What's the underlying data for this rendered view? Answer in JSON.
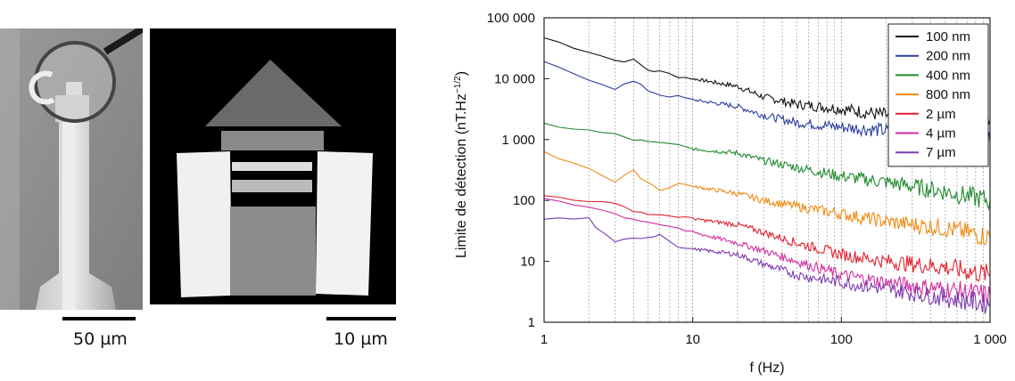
{
  "figure": {
    "left_image": {
      "scale_label": "50 µm"
    },
    "right_image": {
      "scale_label": "10 µm"
    }
  },
  "chart_data": {
    "type": "line",
    "title": "",
    "xlabel": "f (Hz)",
    "ylabel": "Limite de détection (nT.Hz",
    "ylabel_sup": "−1/2",
    "ylabel_close": ")",
    "x_scale": "log",
    "y_scale": "log",
    "xlim": [
      1,
      1000
    ],
    "ylim": [
      1,
      100000
    ],
    "x_ticks": [
      {
        "v": 1,
        "label": "1"
      },
      {
        "v": 10,
        "label": "10"
      },
      {
        "v": 100,
        "label": "100"
      },
      {
        "v": 1000,
        "label": "1 000"
      }
    ],
    "y_ticks": [
      {
        "v": 1,
        "label": "1"
      },
      {
        "v": 10,
        "label": "10"
      },
      {
        "v": 100,
        "label": "100"
      },
      {
        "v": 1000,
        "label": "1 000"
      },
      {
        "v": 10000,
        "label": "10 000"
      },
      {
        "v": 100000,
        "label": "100 000"
      }
    ],
    "grid": "vertical minor/major lines on x",
    "legend_position": "top-right",
    "series": [
      {
        "name": "100 nm",
        "color": "#111111",
        "x": [
          1,
          2,
          3,
          4,
          5,
          6,
          8,
          10,
          20,
          30,
          50,
          100,
          200,
          500,
          1000
        ],
        "y": [
          47000,
          28000,
          20000,
          20000,
          14000,
          13000,
          11000,
          10000,
          7500,
          5000,
          3800,
          3200,
          2500,
          2200,
          2000
        ]
      },
      {
        "name": "200 nm",
        "color": "#2b3c9e",
        "x": [
          1,
          2,
          3,
          4,
          5,
          6,
          8,
          10,
          20,
          30,
          50,
          100,
          200,
          500,
          1000
        ],
        "y": [
          18000,
          10000,
          7000,
          9000,
          6500,
          5500,
          5000,
          4500,
          3500,
          2500,
          1900,
          1600,
          1400,
          1100,
          900
        ]
      },
      {
        "name": "400 nm",
        "color": "#1e8a2e",
        "x": [
          1,
          2,
          3,
          4,
          5,
          8,
          10,
          20,
          30,
          50,
          100,
          200,
          500,
          1000
        ],
        "y": [
          1800,
          1400,
          1200,
          1000,
          900,
          800,
          700,
          600,
          450,
          350,
          250,
          200,
          140,
          100
        ]
      },
      {
        "name": "800 nm",
        "color": "#f08a14",
        "x": [
          1,
          2,
          3,
          4,
          5,
          6,
          8,
          10,
          20,
          30,
          50,
          100,
          200,
          500,
          1000
        ],
        "y": [
          600,
          350,
          200,
          300,
          200,
          150,
          190,
          170,
          130,
          100,
          80,
          60,
          45,
          35,
          25
        ]
      },
      {
        "name": "2 µm",
        "color": "#e02230",
        "x": [
          1,
          2,
          3,
          4,
          5,
          8,
          10,
          20,
          30,
          50,
          100,
          200,
          500,
          1000
        ],
        "y": [
          120,
          100,
          85,
          70,
          60,
          55,
          50,
          40,
          30,
          20,
          13,
          10,
          8,
          6
        ]
      },
      {
        "name": "4 µm",
        "color": "#d02ea0",
        "x": [
          1,
          2,
          3,
          4,
          5,
          8,
          10,
          20,
          30,
          50,
          100,
          200,
          500,
          1000
        ],
        "y": [
          110,
          80,
          60,
          50,
          45,
          35,
          30,
          20,
          15,
          10,
          6,
          4.5,
          3.5,
          2.8
        ]
      },
      {
        "name": "7 µm",
        "color": "#7a3ab0",
        "x": [
          1,
          2,
          2.5,
          3,
          4,
          5,
          6,
          8,
          10,
          20,
          30,
          50,
          100,
          200,
          500,
          1000
        ],
        "y": [
          50,
          50,
          28,
          20,
          25,
          25,
          28,
          18,
          16,
          13,
          9,
          6,
          4.5,
          3.5,
          2.5,
          2
        ]
      }
    ]
  }
}
